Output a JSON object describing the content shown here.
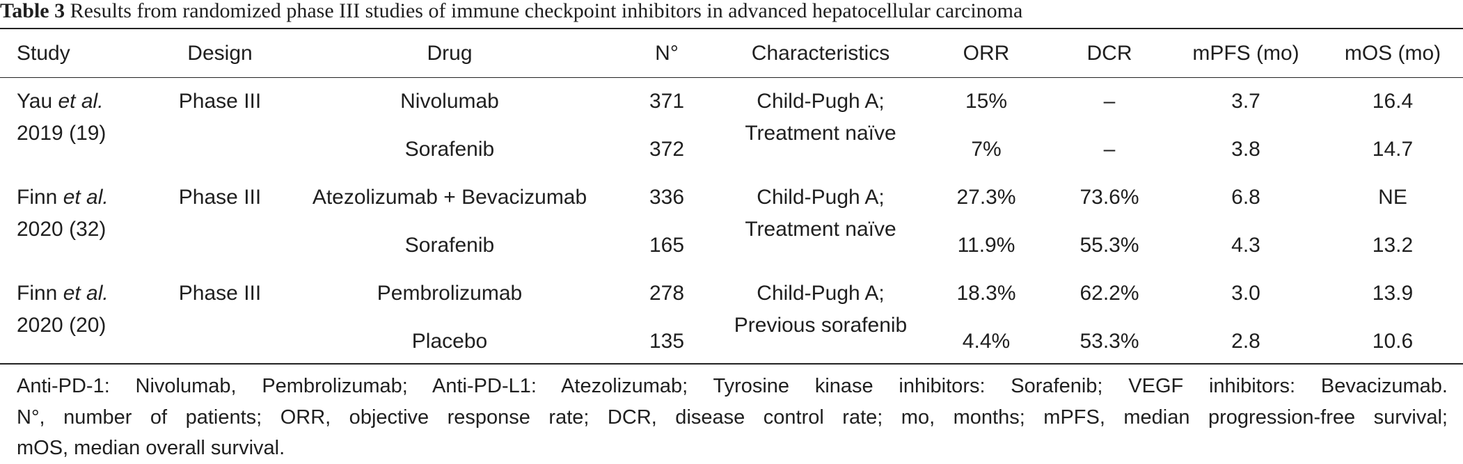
{
  "caption": {
    "label": "Table 3",
    "text": "Results from randomized phase III studies of immune checkpoint inhibitors in advanced hepatocellular carcinoma"
  },
  "headers": {
    "study": "Study",
    "design": "Design",
    "drug": "Drug",
    "n": "N°",
    "characteristics": "Characteristics",
    "orr": "ORR",
    "dcr": "DCR",
    "mpfs": "mPFS (mo)",
    "mos": "mOS (mo)"
  },
  "groups": [
    {
      "study_author": "Yau ",
      "study_etal": "et al.",
      "study_year": "2019 (19)",
      "design": "Phase III",
      "characteristics_1": "Child-Pugh A;",
      "characteristics_2": "Treatment naïve",
      "arms": [
        {
          "drug": "Nivolumab",
          "n": "371",
          "orr": "15%",
          "dcr": "–",
          "mpfs": "3.7",
          "mos": "16.4"
        },
        {
          "drug": "Sorafenib",
          "n": "372",
          "orr": "7%",
          "dcr": "–",
          "mpfs": "3.8",
          "mos": "14.7"
        }
      ]
    },
    {
      "study_author": "Finn ",
      "study_etal": "et al.",
      "study_year": "2020 (32)",
      "design": "Phase III",
      "characteristics_1": "Child-Pugh A;",
      "characteristics_2": "Treatment naïve",
      "arms": [
        {
          "drug": "Atezolizumab + Bevacizumab",
          "n": "336",
          "orr": "27.3%",
          "dcr": "73.6%",
          "mpfs": "6.8",
          "mos": "NE"
        },
        {
          "drug": "Sorafenib",
          "n": "165",
          "orr": "11.9%",
          "dcr": "55.3%",
          "mpfs": "4.3",
          "mos": "13.2"
        }
      ]
    },
    {
      "study_author": "Finn ",
      "study_etal": "et al.",
      "study_year": "2020 (20)",
      "design": "Phase III",
      "characteristics_1": "Child-Pugh A;",
      "characteristics_2": "Previous sorafenib",
      "arms": [
        {
          "drug": "Pembrolizumab",
          "n": "278",
          "orr": "18.3%",
          "dcr": "62.2%",
          "mpfs": "3.0",
          "mos": "13.9"
        },
        {
          "drug": "Placebo",
          "n": "135",
          "orr": "4.4%",
          "dcr": "53.3%",
          "mpfs": "2.8",
          "mos": "10.6"
        }
      ]
    }
  ],
  "footnote": {
    "line1": "Anti-PD-1: Nivolumab, Pembrolizumab; Anti-PD-L1: Atezolizumab; Tyrosine kinase inhibitors: Sorafenib; VEGF inhibitors: Bevacizumab.",
    "line2": "N°, number of patients; ORR, objective response rate; DCR, disease control rate; mo, months; mPFS, median progression-free survival;",
    "line3": "mOS, median overall survival."
  }
}
